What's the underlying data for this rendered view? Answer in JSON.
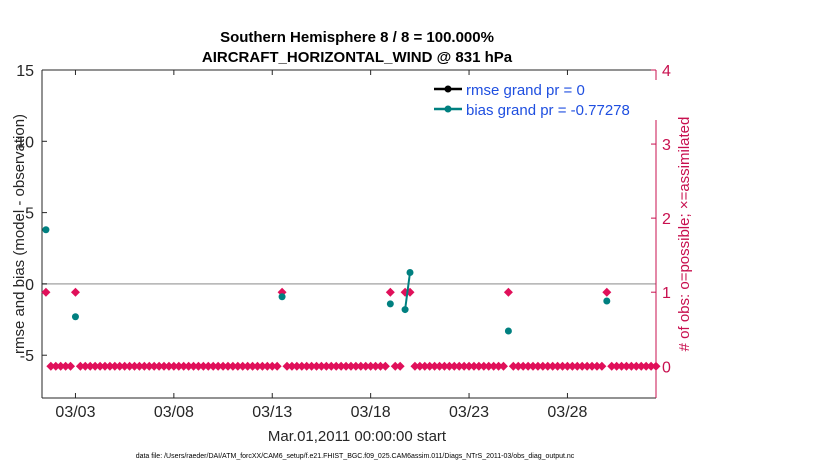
{
  "chart_data": {
    "type": "line",
    "title_line1": "Southern Hemisphere 8 / 8 = 100.000%",
    "title_line2": "AIRCRAFT_HORIZONTAL_WIND @ 831 hPa",
    "xlabel": "Mar.01,2011 00:00:00 start",
    "ylabel_left": "rmse and bias (model - observation)",
    "ylabel_right": "# of obs: o=possible; ×=assimilated",
    "footer": "data file: /Users/raeder/DAI/ATM_forcXX/CAM6_setup/f.e21.FHIST_BGC.f09_025.CAM6assim.011/Diags_NTrS_2011-03/obs_diag_output.nc",
    "xlim": [
      1.3,
      32.5
    ],
    "ylim_left": [
      -8,
      15
    ],
    "ylim_right": [
      -0.428571,
      4
    ],
    "x_ticks": [
      {
        "value": 3,
        "label": "03/03"
      },
      {
        "value": 8,
        "label": "03/08"
      },
      {
        "value": 13,
        "label": "03/13"
      },
      {
        "value": 18,
        "label": "03/18"
      },
      {
        "value": 23,
        "label": "03/23"
      },
      {
        "value": 28,
        "label": "03/28"
      }
    ],
    "y_ticks_left": [
      {
        "value": 15,
        "label": "15"
      },
      {
        "value": 10,
        "label": "10"
      },
      {
        "value": 5,
        "label": "5"
      },
      {
        "value": 0,
        "label": "0"
      },
      {
        "value": -5,
        "label": "-5"
      }
    ],
    "y_ticks_right": [
      {
        "value": 4,
        "label": "4"
      },
      {
        "value": 3,
        "label": "3"
      },
      {
        "value": 2,
        "label": "2"
      },
      {
        "value": 1,
        "label": "1"
      },
      {
        "value": 0,
        "label": "0"
      }
    ],
    "legend": [
      {
        "name": "rmse grand pr = 0",
        "color": "#000000"
      },
      {
        "name": "bias grand pr = -0.77278",
        "color": "#008080"
      }
    ],
    "series": [
      {
        "name": "rmse",
        "color": "#000000",
        "points": [
          [
            1.5,
            0
          ],
          [
            3.0,
            0
          ],
          [
            13.5,
            0
          ],
          [
            19.0,
            0
          ],
          [
            19.75,
            0
          ],
          [
            20.0,
            0
          ],
          [
            25.0,
            0
          ],
          [
            30.0,
            0
          ]
        ]
      },
      {
        "name": "bias",
        "color": "#008080",
        "points": [
          [
            1.5,
            3.8
          ],
          [
            3.0,
            -2.3
          ],
          [
            13.5,
            -0.9
          ],
          [
            19.0,
            -1.4
          ],
          [
            19.75,
            -1.8
          ],
          [
            20.0,
            0.8
          ],
          [
            25.0,
            -3.3
          ],
          [
            30.0,
            -1.2
          ]
        ],
        "connected_segments": [
          [
            19.75,
            20.0
          ]
        ]
      },
      {
        "name": "obs possible",
        "color": "#e0105a",
        "axis": "right",
        "values_one_at": [
          1.5,
          3.0,
          13.5,
          19.0,
          19.75,
          20.0,
          25.0,
          30.0
        ],
        "range": [
          1.5,
          32.5
        ],
        "step": 0.25
      }
    ],
    "colors": {
      "axis_right": "#c8104f",
      "marker_right": "#e0105a",
      "legend_text": "#1f4fe0",
      "zero_line": "#b0b0b0",
      "axes": "#262626"
    }
  }
}
